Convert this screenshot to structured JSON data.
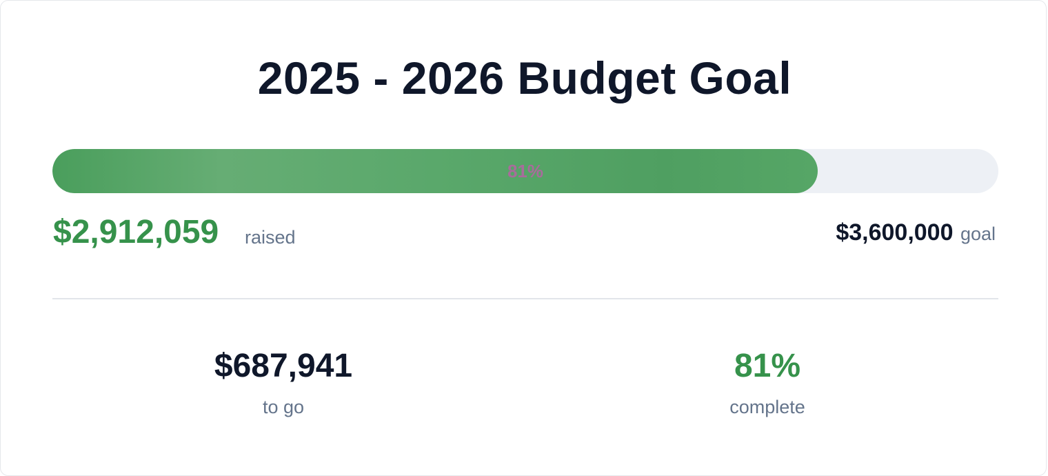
{
  "title": "2025 - 2026 Budget Goal",
  "progress": {
    "percent_label": "81%",
    "fraction": 0.809
  },
  "raised": {
    "amount": "$2,912,059",
    "label": "raised"
  },
  "goal": {
    "amount": "$3,600,000",
    "label": "goal"
  },
  "stats": {
    "to_go": {
      "value": "$687,941",
      "label": "to go"
    },
    "complete": {
      "value": "81%",
      "label": "complete"
    }
  },
  "colors": {
    "accent_green": "#36924b",
    "progress_fill": "#56a666",
    "progress_track": "#edf0f5",
    "progress_label": "#a86c9b",
    "text_dark": "#0f172a",
    "text_muted": "#64748b"
  }
}
